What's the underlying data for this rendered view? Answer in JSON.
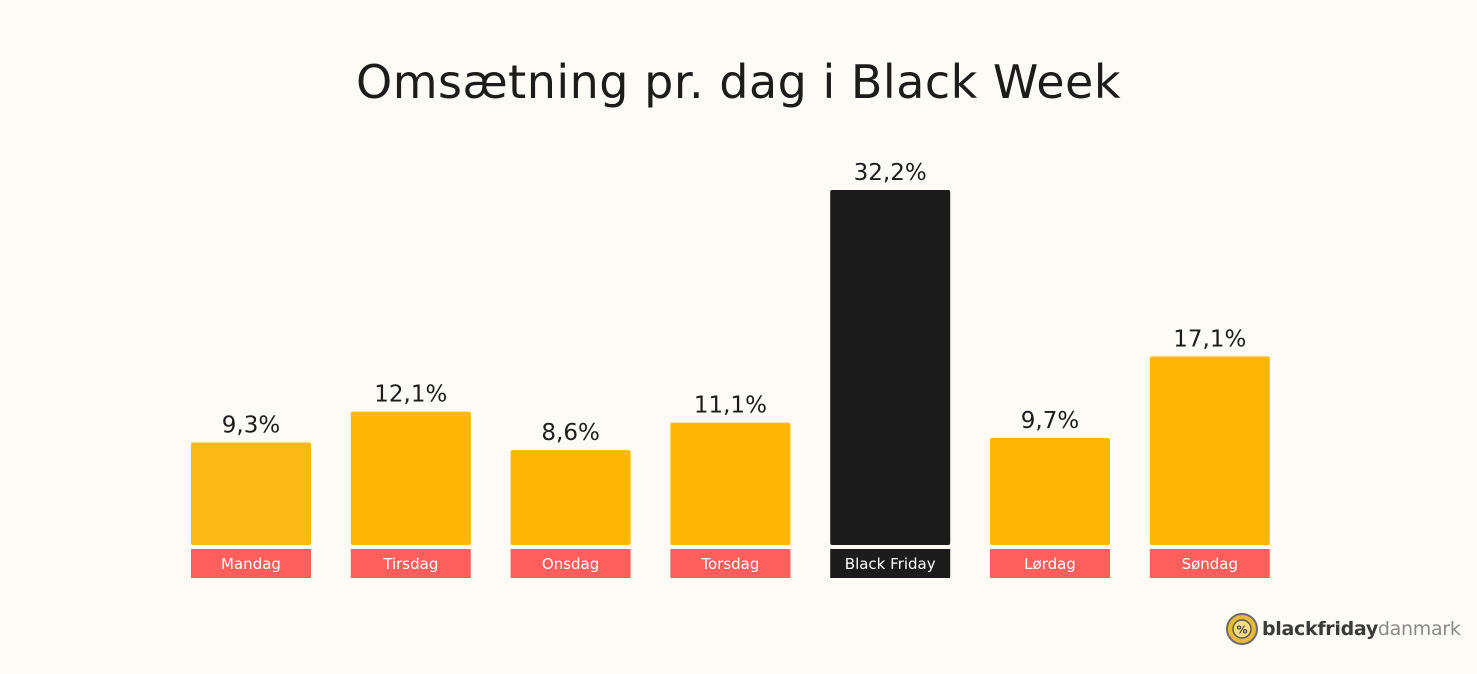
{
  "chart_data": {
    "type": "bar",
    "title": "Omsætning pr. dag i Black Week",
    "categories": [
      "Mandag",
      "Tirsdag",
      "Onsdag",
      "Torsdag",
      "Black Friday",
      "Lørdag",
      "Søndag"
    ],
    "values": [
      9.3,
      12.1,
      8.6,
      11.1,
      32.2,
      9.7,
      17.1
    ],
    "value_labels": [
      "9,3%",
      "12,1%",
      "8,6%",
      "11,1%",
      "32,2%",
      "9,7%",
      "17,1%"
    ],
    "unit": "%",
    "highlight_index": 4,
    "ylim": [
      0,
      32.2
    ],
    "grid": false,
    "legend": "none",
    "xlabel": "",
    "ylabel": ""
  },
  "colors": {
    "bar": "#feb702",
    "bar_first": "#fdb918",
    "bar_highlight": "#1c1c1c",
    "label_bg": "#fe5f5c",
    "label_bg_highlight": "#1c1c1c",
    "label_text": "#ffffff",
    "value_text": "#1c1c1c",
    "background": "#fcfbf6"
  },
  "brand": {
    "name_bold": "blackfriday",
    "name_light": "danmark",
    "icon": "bfd-logo-icon"
  }
}
